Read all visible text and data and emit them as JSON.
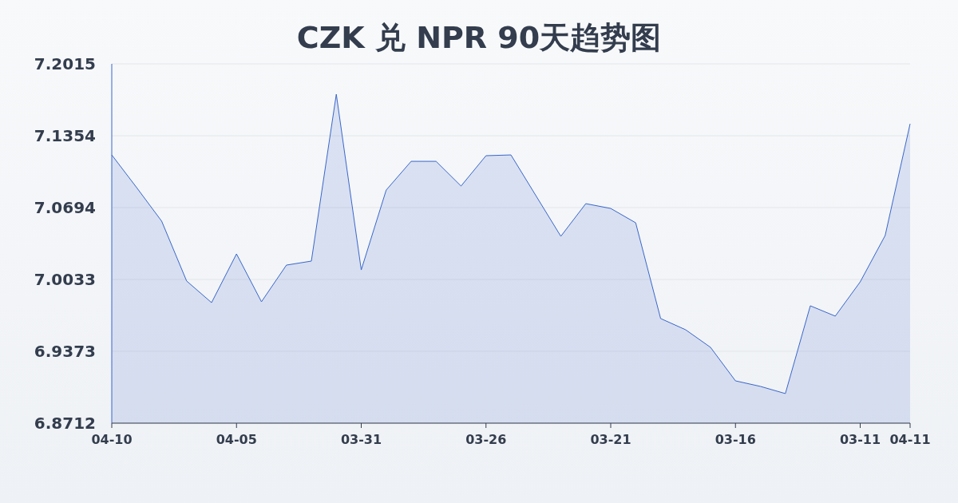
{
  "chart_data": {
    "type": "area",
    "title": "CZK 兑 NPR 90天趋势图",
    "categories": [
      "04-10",
      null,
      null,
      null,
      null,
      "04-05",
      null,
      null,
      null,
      null,
      "03-31",
      null,
      null,
      null,
      null,
      "03-26",
      null,
      null,
      null,
      null,
      "03-21",
      null,
      null,
      null,
      null,
      "03-16",
      null,
      null,
      null,
      null,
      "03-11",
      null,
      "04-11"
    ],
    "series": [
      {
        "color": "#3a66c9",
        "values": [
          7.1178,
          7.0877,
          7.0569,
          7.0019,
          6.982,
          7.0268,
          6.9828,
          7.0165,
          7.0202,
          7.1736,
          7.0121,
          7.0855,
          7.1119,
          7.1119,
          7.0892,
          7.1171,
          7.1178,
          7.0804,
          7.043,
          7.073,
          7.0686,
          7.0554,
          6.9674,
          6.9571,
          6.9409,
          6.9101,
          6.905,
          6.8984,
          6.9791,
          6.9696,
          7.0011,
          7.0437,
          7.1464
        ]
      }
    ],
    "ylim": [
      6.8712,
      7.2015
    ],
    "yticks": [
      6.8712,
      6.9373,
      7.0033,
      7.0694,
      7.1354,
      7.2015
    ],
    "grid": "y"
  }
}
